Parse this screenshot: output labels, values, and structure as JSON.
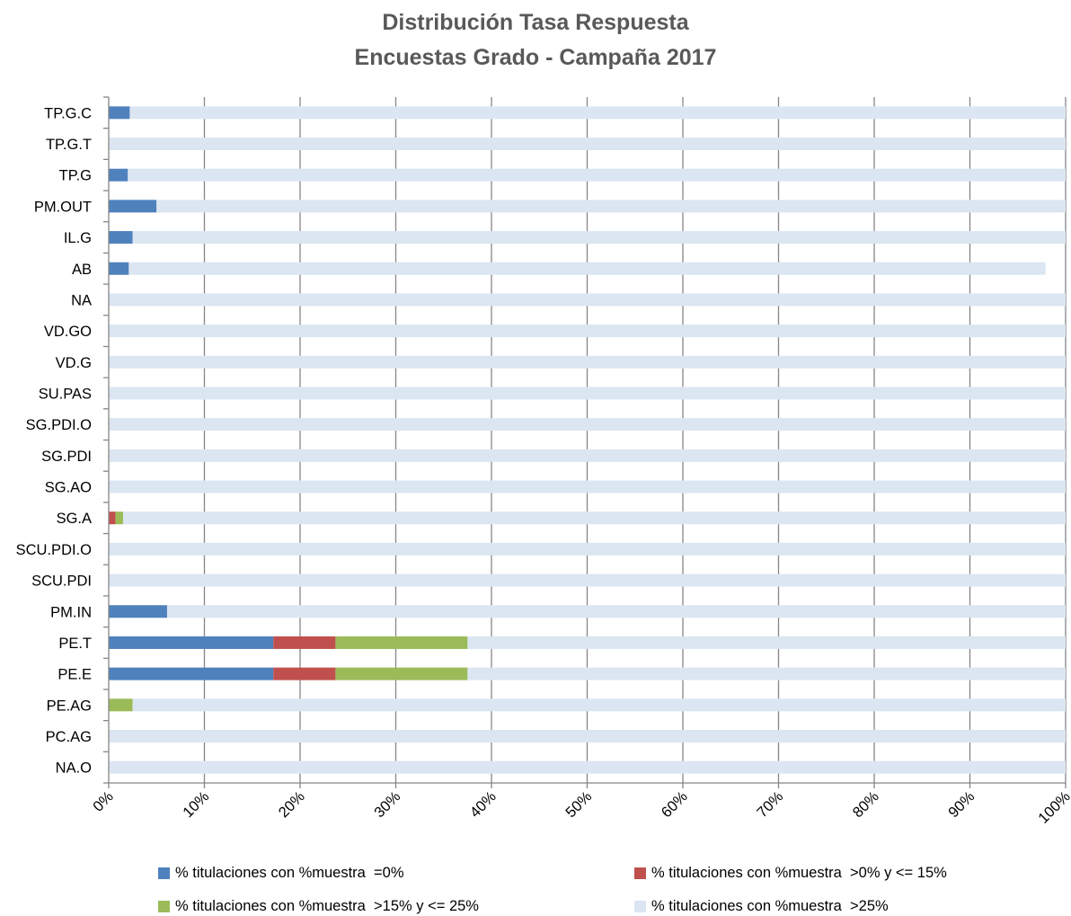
{
  "chart_data": {
    "type": "bar",
    "orientation": "horizontal",
    "stacked": true,
    "title": [
      "Distribución Tasa Respuesta",
      "Encuestas Grado - Campaña 2017"
    ],
    "categories": [
      "TP.G.C",
      "TP.G.T",
      "TP.G",
      "PM.OUT",
      "IL.G",
      "AB",
      "NA",
      "VD.GO",
      "VD.G",
      "SU.PAS",
      "SG.PDI.O",
      "SG.PDI",
      "SG.AO",
      "SG.A",
      "SCU.PDI.O",
      "SCU.PDI",
      "PM.IN",
      "PE.T",
      "PE.E",
      "PE.AG",
      "PC.AG",
      "NA.O"
    ],
    "series": [
      {
        "name": "% titulaciones con %muestra  =0%",
        "color": "#4F81BD",
        "values": [
          2.2,
          0,
          2.0,
          5.0,
          2.5,
          2.1,
          0,
          0,
          0,
          0,
          0,
          0,
          0,
          0,
          0,
          0,
          6.1,
          17.2,
          17.2,
          0,
          0,
          0
        ]
      },
      {
        "name": "% titulaciones con %muestra  >0% y <= 15%",
        "color": "#C0504D",
        "values": [
          0,
          0,
          0,
          0,
          0,
          0,
          0,
          0,
          0,
          0,
          0,
          0,
          0,
          0.7,
          0,
          0,
          0,
          6.5,
          6.5,
          0,
          0,
          0
        ]
      },
      {
        "name": "% titulaciones con %muestra  >15% y <= 25%",
        "color": "#9BBB59",
        "values": [
          0,
          0,
          0,
          0,
          0,
          0,
          0,
          0,
          0,
          0,
          0,
          0,
          0,
          0.8,
          0,
          0,
          0,
          13.8,
          13.8,
          2.5,
          0,
          0
        ]
      },
      {
        "name": "% titulaciones con %muestra  >25%",
        "color": "#DCE6F2",
        "values": [
          97.8,
          100,
          98.0,
          95.0,
          97.5,
          95.8,
          100,
          100,
          100,
          100,
          100,
          100,
          100,
          98.5,
          100,
          100,
          93.9,
          62.5,
          62.5,
          97.5,
          100,
          100
        ]
      }
    ],
    "xticks": [
      "0%",
      "10%",
      "20%",
      "30%",
      "40%",
      "50%",
      "60%",
      "70%",
      "80%",
      "90%",
      "100%"
    ],
    "xlim": [
      0,
      100
    ],
    "grid": "vertical",
    "legend_position": "bottom"
  }
}
